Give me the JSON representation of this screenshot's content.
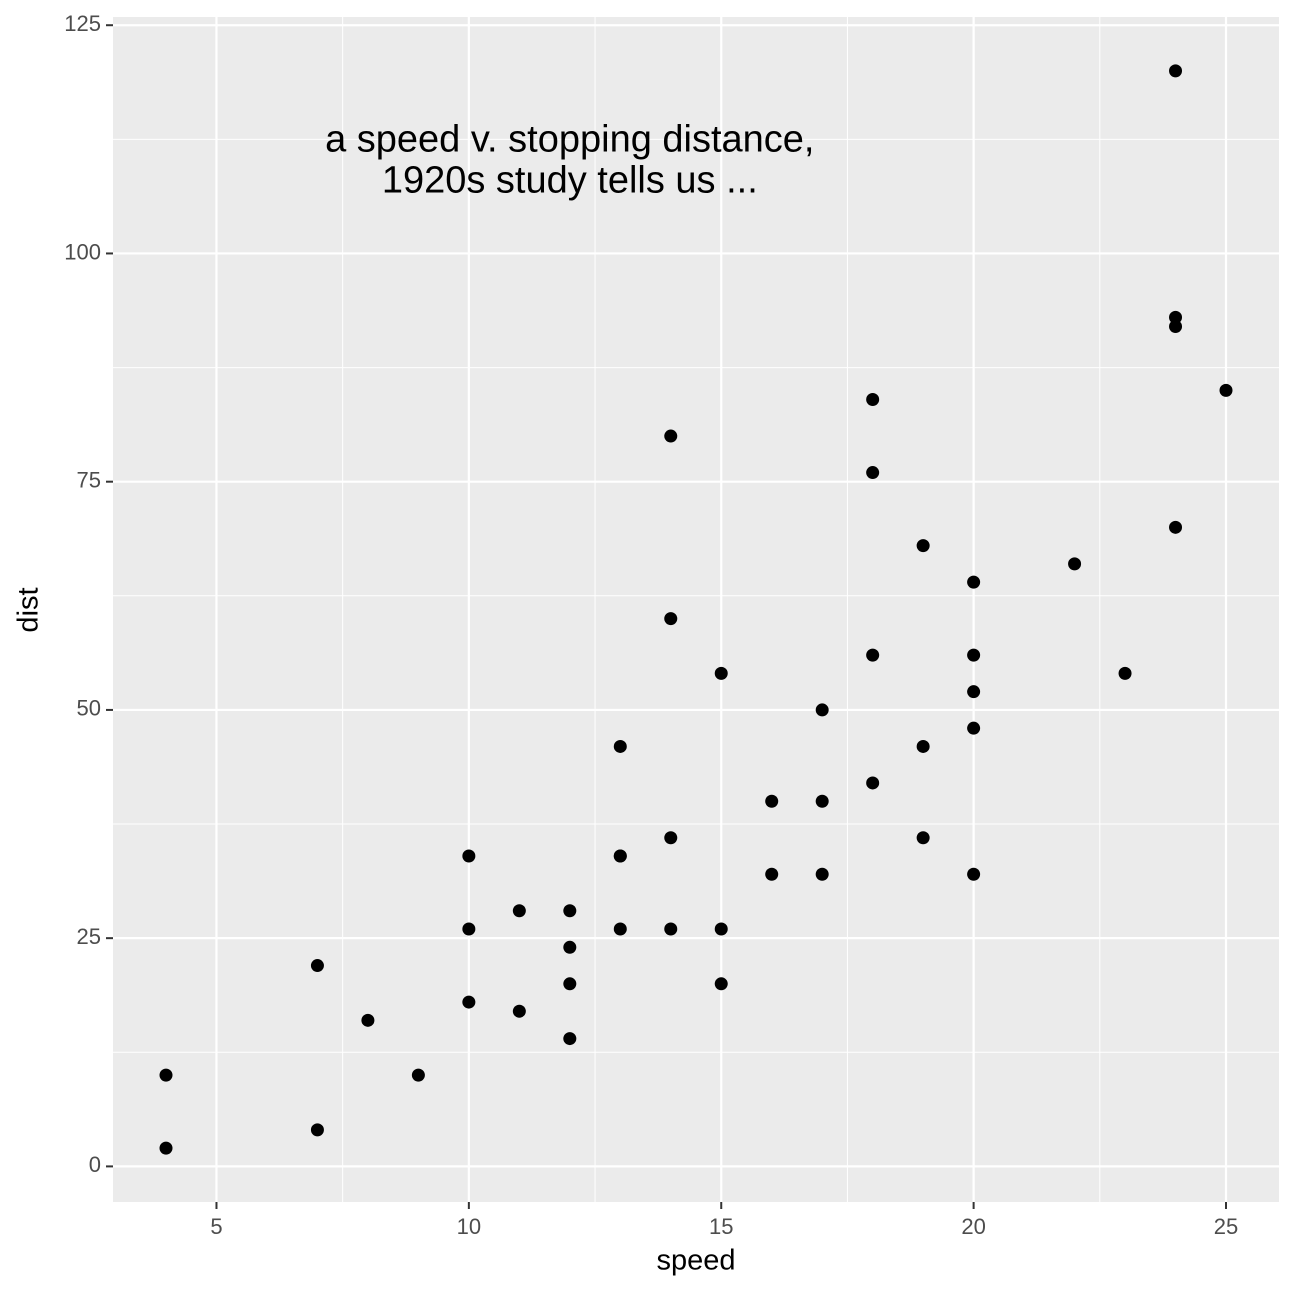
{
  "chart_data": {
    "type": "scatter",
    "x_label": "speed",
    "y_label": "dist",
    "annotation": {
      "lines": [
        "a speed v. stopping distance,",
        "1920s study tells us ..."
      ],
      "x": 12,
      "y": 110
    },
    "series": [
      {
        "color": "#000000",
        "x": [
          4,
          4,
          7,
          7,
          8,
          9,
          10,
          10,
          10,
          11,
          11,
          12,
          12,
          12,
          12,
          13,
          13,
          13,
          13,
          14,
          14,
          14,
          14,
          15,
          15,
          15,
          16,
          16,
          17,
          17,
          17,
          18,
          18,
          18,
          18,
          19,
          19,
          19,
          20,
          20,
          20,
          20,
          20,
          22,
          23,
          24,
          24,
          24,
          24,
          25
        ],
        "values": [
          2,
          10,
          4,
          22,
          16,
          10,
          18,
          26,
          34,
          17,
          28,
          14,
          20,
          24,
          28,
          26,
          34,
          34,
          46,
          26,
          36,
          60,
          80,
          20,
          26,
          54,
          32,
          40,
          32,
          40,
          50,
          42,
          56,
          76,
          84,
          36,
          46,
          68,
          32,
          48,
          52,
          56,
          64,
          66,
          54,
          70,
          92,
          93,
          120,
          85
        ]
      }
    ],
    "xlim": [
      2.95,
      26.05
    ],
    "xticks": [
      5,
      10,
      15,
      20,
      25
    ],
    "ylim": [
      -3.9,
      125.9
    ],
    "yticks": [
      0,
      25,
      50,
      75,
      100,
      125
    ],
    "grid": true
  }
}
